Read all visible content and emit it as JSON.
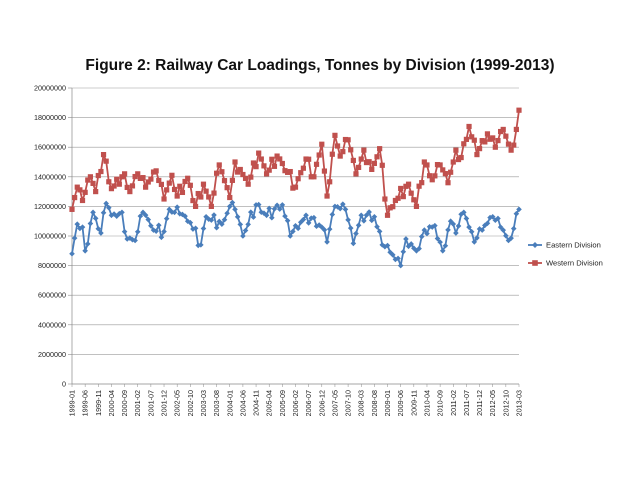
{
  "chart_data": {
    "type": "line",
    "title": "Figure 2: Railway Car Loadings, Tonnes by Division (1999-2013)",
    "xlabel": "",
    "ylabel": "",
    "ylim": [
      0,
      20000000
    ],
    "yticks": [
      0,
      2000000,
      4000000,
      6000000,
      8000000,
      10000000,
      12000000,
      14000000,
      16000000,
      18000000,
      20000000
    ],
    "ytick_labels": [
      "0",
      "2000000",
      "4000000",
      "6000000",
      "8000000",
      "10000000",
      "12000000",
      "14000000",
      "16000000",
      "18000000",
      "20000000"
    ],
    "x_start": "1999-01",
    "x_end": "2013-03",
    "x_step_months": 1,
    "x_tick_labels": [
      "1999-01",
      "1999-06",
      "1999-11",
      "2000-04",
      "2000-09",
      "2001-02",
      "2001-07",
      "2001-12",
      "2002-05",
      "2002-10",
      "2003-03",
      "2003-08",
      "2004-01",
      "2004-06",
      "2004-11",
      "2005-04",
      "2005-09",
      "2006-02",
      "2006-07",
      "2006-12",
      "2007-05",
      "2007-10",
      "2008-03",
      "2008-08",
      "2009-01",
      "2009-06",
      "2009-11",
      "2010-04",
      "2010-09",
      "2011-02",
      "2011-07",
      "2011-12",
      "2012-05",
      "2012-10",
      "2013-03"
    ],
    "grid": "horizontal",
    "legend_position": "right",
    "series": [
      {
        "name": "Eastern Division",
        "color": "#4a7ebb",
        "marker": "diamond",
        "anchors": [
          [
            "1999-01",
            8800000
          ],
          [
            "1999-03",
            10800000
          ],
          [
            "1999-05",
            10600000
          ],
          [
            "1999-06",
            9000000
          ],
          [
            "1999-09",
            11600000
          ],
          [
            "1999-12",
            10200000
          ],
          [
            "2000-02",
            12200000
          ],
          [
            "2000-04",
            11400000
          ],
          [
            "2000-08",
            11600000
          ],
          [
            "2000-10",
            9800000
          ],
          [
            "2001-01",
            9700000
          ],
          [
            "2001-04",
            11600000
          ],
          [
            "2001-08",
            10400000
          ],
          [
            "2001-12",
            10300000
          ],
          [
            "2002-02",
            11800000
          ],
          [
            "2002-06",
            11500000
          ],
          [
            "2002-10",
            10900000
          ],
          [
            "2003-02",
            9400000
          ],
          [
            "2003-04",
            11300000
          ],
          [
            "2003-10",
            10800000
          ],
          [
            "2004-01",
            12000000
          ],
          [
            "2004-03",
            11800000
          ],
          [
            "2004-06",
            10000000
          ],
          [
            "2004-11",
            12100000
          ],
          [
            "2005-03",
            11400000
          ],
          [
            "2005-09",
            12100000
          ],
          [
            "2005-12",
            10000000
          ],
          [
            "2006-06",
            11400000
          ],
          [
            "2006-12",
            10600000
          ],
          [
            "2007-02",
            9600000
          ],
          [
            "2007-05",
            12000000
          ],
          [
            "2007-09",
            11800000
          ],
          [
            "2007-12",
            9500000
          ],
          [
            "2008-03",
            11400000
          ],
          [
            "2008-08",
            11300000
          ],
          [
            "2008-11",
            9400000
          ],
          [
            "2009-02",
            8900000
          ],
          [
            "2009-06",
            8000000
          ],
          [
            "2009-08",
            9800000
          ],
          [
            "2009-12",
            9000000
          ],
          [
            "2010-03",
            10400000
          ],
          [
            "2010-07",
            10700000
          ],
          [
            "2010-10",
            9000000
          ],
          [
            "2011-01",
            11000000
          ],
          [
            "2011-03",
            10200000
          ],
          [
            "2011-06",
            11600000
          ],
          [
            "2011-10",
            9600000
          ],
          [
            "2012-01",
            10400000
          ],
          [
            "2012-05",
            11300000
          ],
          [
            "2012-08",
            10600000
          ],
          [
            "2012-11",
            9700000
          ],
          [
            "2013-01",
            10500000
          ],
          [
            "2013-03",
            11800000
          ]
        ]
      },
      {
        "name": "Western Division",
        "color": "#c0504d",
        "marker": "square",
        "anchors": [
          [
            "1999-01",
            11800000
          ],
          [
            "1999-03",
            13300000
          ],
          [
            "1999-05",
            12400000
          ],
          [
            "1999-08",
            14000000
          ],
          [
            "1999-10",
            13000000
          ],
          [
            "2000-01",
            15500000
          ],
          [
            "2000-04",
            13200000
          ],
          [
            "2000-09",
            14200000
          ],
          [
            "2000-11",
            13000000
          ],
          [
            "2001-02",
            14200000
          ],
          [
            "2001-05",
            13300000
          ],
          [
            "2001-09",
            14400000
          ],
          [
            "2001-12",
            12500000
          ],
          [
            "2002-03",
            14100000
          ],
          [
            "2002-05",
            12700000
          ],
          [
            "2002-09",
            13900000
          ],
          [
            "2002-12",
            12000000
          ],
          [
            "2003-03",
            13500000
          ],
          [
            "2003-06",
            12000000
          ],
          [
            "2003-09",
            14800000
          ],
          [
            "2004-01",
            12600000
          ],
          [
            "2004-03",
            15000000
          ],
          [
            "2004-08",
            13500000
          ],
          [
            "2004-12",
            15600000
          ],
          [
            "2005-03",
            14200000
          ],
          [
            "2005-07",
            15400000
          ],
          [
            "2005-11",
            14300000
          ],
          [
            "2006-02",
            13300000
          ],
          [
            "2006-06",
            15200000
          ],
          [
            "2006-09",
            14000000
          ],
          [
            "2006-12",
            16200000
          ],
          [
            "2007-02",
            12700000
          ],
          [
            "2007-05",
            16800000
          ],
          [
            "2007-07",
            15400000
          ],
          [
            "2007-10",
            16500000
          ],
          [
            "2008-01",
            14200000
          ],
          [
            "2008-04",
            15800000
          ],
          [
            "2008-07",
            14500000
          ],
          [
            "2008-10",
            15900000
          ],
          [
            "2009-01",
            11400000
          ],
          [
            "2009-04",
            12400000
          ],
          [
            "2009-09",
            13500000
          ],
          [
            "2009-12",
            12000000
          ],
          [
            "2010-03",
            15000000
          ],
          [
            "2010-06",
            13800000
          ],
          [
            "2010-09",
            14800000
          ],
          [
            "2010-12",
            13600000
          ],
          [
            "2011-03",
            15800000
          ],
          [
            "2011-05",
            15300000
          ],
          [
            "2011-08",
            17400000
          ],
          [
            "2011-11",
            15500000
          ],
          [
            "2012-03",
            16900000
          ],
          [
            "2012-06",
            16000000
          ],
          [
            "2012-09",
            17200000
          ],
          [
            "2012-12",
            15800000
          ],
          [
            "2013-02",
            17200000
          ],
          [
            "2013-03",
            18500000
          ]
        ]
      }
    ]
  }
}
